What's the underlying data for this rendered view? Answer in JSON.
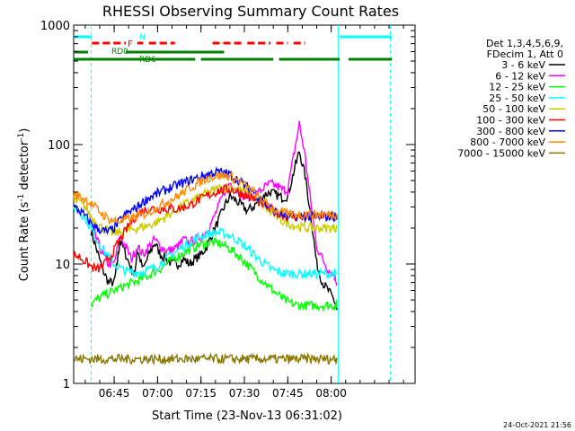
{
  "chart_data": {
    "type": "line",
    "title": "RHESSI Observing Summary Count Rates",
    "xlabel": "Start Time (23-Nov-13 06:31:02)",
    "ylabel_main": "Count Rate (s",
    "ylabel_sup1": "-1",
    "ylabel_mid": " detector",
    "ylabel_sup2": "-1",
    "ylabel_end": ")",
    "yscale": "log",
    "ylim": [
      1,
      1000
    ],
    "xlim_min": [
      0,
      118
    ],
    "x_ticks": [
      {
        "label": "06:45",
        "t": 14
      },
      {
        "label": "07:00",
        "t": 29
      },
      {
        "label": "07:15",
        "t": 44
      },
      {
        "label": "07:30",
        "t": 59
      },
      {
        "label": "07:45",
        "t": 74
      },
      {
        "label": "08:00",
        "t": 89
      }
    ],
    "y_ticks": [
      {
        "label": "1",
        "v": 1
      },
      {
        "label": "10",
        "v": 10
      },
      {
        "label": "100",
        "v": 100
      },
      {
        "label": "1000",
        "v": 1000
      }
    ],
    "vlines_min": [
      6,
      109.5
    ],
    "vlines_cyan_min": [
      91.5
    ],
    "legend_header": [
      "Det 1,3,4,5,6,9,",
      "FDecim 1, Att 0"
    ],
    "flag_labels": {
      "n": "N",
      "f": "F",
      "rd0": "RD0",
      "rd6": "RD6"
    },
    "flags": {
      "night": [
        [
          0,
          6.3
        ],
        [
          92,
          110
        ]
      ],
      "flare": [
        [
          6.3,
          18
        ],
        [
          22,
          24
        ],
        [
          26,
          35
        ],
        [
          48,
          58
        ],
        [
          60,
          68
        ],
        [
          70,
          74
        ],
        [
          76,
          80
        ]
      ],
      "decim0": [
        [
          0,
          5
        ],
        [
          18,
          52
        ]
      ],
      "decim6": [
        [
          0,
          42
        ],
        [
          44,
          69
        ],
        [
          71,
          92
        ],
        [
          95,
          110
        ]
      ]
    },
    "series": [
      {
        "name": "3 - 6 keV",
        "color": "#000000",
        "x": [
          6,
          8,
          10,
          12,
          14,
          15,
          16,
          18,
          20,
          21,
          22,
          24,
          26,
          28,
          30,
          32,
          34,
          36,
          38,
          40,
          42,
          44,
          46,
          48,
          50,
          52,
          54,
          56,
          58,
          60,
          62,
          64,
          66,
          68,
          70,
          72,
          74,
          76,
          78,
          80,
          82,
          84,
          86,
          88,
          90,
          91
        ],
        "y": [
          19,
          13,
          9,
          7,
          7,
          10,
          16,
          12,
          9,
          8,
          13,
          9,
          12,
          15,
          12,
          11,
          10,
          10,
          11,
          10,
          11,
          12,
          14,
          18,
          23,
          30,
          37,
          34,
          31,
          28,
          30,
          34,
          38,
          40,
          38,
          36,
          37,
          58,
          88,
          55,
          25,
          10,
          7,
          6,
          5,
          4
        ]
      },
      {
        "name": "6 - 12 keV",
        "color": "#ff00ff",
        "x": [
          6,
          8,
          10,
          12,
          14,
          16,
          18,
          20,
          22,
          24,
          26,
          28,
          30,
          32,
          34,
          36,
          38,
          40,
          42,
          44,
          46,
          48,
          50,
          52,
          54,
          56,
          58,
          60,
          62,
          64,
          66,
          68,
          70,
          72,
          74,
          76,
          78,
          80,
          82,
          84,
          86,
          88,
          90,
          91
        ],
        "y": [
          22,
          16,
          12,
          10,
          10,
          17,
          14,
          11,
          14,
          12,
          14,
          16,
          14,
          13,
          13,
          14,
          16,
          15,
          16,
          17,
          19,
          23,
          30,
          40,
          48,
          43,
          38,
          36,
          37,
          40,
          44,
          47,
          45,
          42,
          42,
          80,
          150,
          80,
          32,
          14,
          11,
          9,
          8,
          7
        ]
      },
      {
        "name": "12 - 25 keV",
        "color": "#00ff00",
        "x": [
          6,
          8,
          10,
          12,
          14,
          16,
          18,
          20,
          22,
          24,
          26,
          28,
          30,
          32,
          34,
          36,
          38,
          40,
          42,
          44,
          46,
          48,
          50,
          52,
          54,
          56,
          58,
          60,
          62,
          64,
          66,
          68,
          70,
          72,
          74,
          76,
          78,
          80,
          82,
          84,
          86,
          88,
          90,
          91
        ],
        "y": [
          4.6,
          5,
          5.4,
          5.7,
          6,
          6.3,
          6.6,
          6.9,
          7.2,
          7.6,
          8,
          8.6,
          9.2,
          10,
          10.8,
          11.6,
          12.4,
          13.2,
          14,
          14.6,
          15,
          15.1,
          14.9,
          14.3,
          13.4,
          12.3,
          11.1,
          9.9,
          8.8,
          7.8,
          7,
          6.3,
          5.7,
          5.2,
          4.8,
          4.6,
          4.5,
          4.5,
          4.5,
          4.5,
          4.5,
          4.5,
          4.5,
          4.5
        ]
      },
      {
        "name": "25 - 50 keV",
        "color": "#00ffff",
        "x": [
          0,
          2,
          4,
          6,
          8,
          10,
          12,
          14,
          16,
          18,
          20,
          22,
          24,
          26,
          28,
          30,
          32,
          34,
          36,
          38,
          40,
          42,
          44,
          46,
          48,
          50,
          52,
          54,
          56,
          58,
          60,
          62,
          64,
          66,
          68,
          70,
          72,
          74,
          76,
          78,
          80,
          82,
          84,
          86,
          88,
          90,
          91,
          92,
          94,
          96,
          98,
          100,
          102,
          104,
          106,
          108,
          110
        ],
        "y": [
          30,
          28,
          24,
          20,
          16,
          13.5,
          11.5,
          10,
          9.2,
          8.8,
          8.5,
          8.5,
          8.6,
          8.9,
          9.4,
          10.1,
          11,
          12,
          13,
          14.1,
          15.2,
          16.2,
          17.1,
          17.8,
          18.2,
          18.3,
          18,
          17.3,
          16.2,
          14.9,
          13.5,
          12.2,
          11,
          10,
          9.2,
          8.7,
          8.4,
          8.3,
          8.3,
          8.3,
          8.3,
          8.3,
          8.3,
          8.3,
          8.3,
          8.3,
          8.3,
          null,
          null,
          null,
          null,
          null,
          null,
          null,
          null,
          null,
          null
        ]
      },
      {
        "name": "50 - 100 keV",
        "color": "#cccc00",
        "x": [
          0,
          2,
          4,
          6,
          8,
          10,
          12,
          14,
          16,
          18,
          20,
          22,
          24,
          26,
          28,
          30,
          32,
          34,
          36,
          38,
          40,
          42,
          44,
          46,
          48,
          50,
          52,
          54,
          56,
          58,
          60,
          62,
          64,
          66,
          68,
          70,
          72,
          74,
          76,
          78,
          80,
          82,
          84,
          86,
          88,
          90,
          91
        ],
        "y": [
          34,
          33,
          30,
          25,
          22,
          20,
          19,
          18,
          18.5,
          19,
          19.5,
          20,
          20.5,
          21,
          22,
          23.5,
          25,
          27,
          29,
          31,
          33,
          35,
          37,
          39,
          41,
          43,
          44,
          44,
          43,
          41,
          39,
          36,
          33,
          30,
          27,
          25,
          23,
          22,
          21,
          20.5,
          20,
          20,
          20,
          20,
          20,
          20,
          20
        ]
      },
      {
        "name": "100 - 300 keV",
        "color": "#ff0000",
        "x": [
          0,
          2,
          4,
          6,
          8,
          10,
          12,
          14,
          16,
          18,
          20,
          22,
          24,
          26,
          28,
          30,
          32,
          34,
          36,
          38,
          40,
          42,
          44,
          46,
          48,
          50,
          52,
          54,
          56,
          58,
          60,
          62,
          64,
          66,
          68,
          70,
          72,
          74,
          76,
          78,
          80,
          82,
          84,
          86,
          88,
          90,
          91
        ],
        "y": [
          12,
          11.5,
          10.5,
          9.5,
          9,
          9.5,
          11,
          13,
          16,
          19,
          23,
          26,
          28,
          29,
          29,
          29,
          29,
          29,
          29,
          30,
          31,
          33,
          35,
          37,
          39,
          41,
          42,
          42,
          41,
          39,
          37,
          35,
          33,
          31,
          29,
          27,
          26,
          25,
          25,
          25,
          25,
          25,
          25,
          25,
          25,
          25,
          25
        ]
      },
      {
        "name": "300 - 800 keV",
        "color": "#0000ff",
        "x": [
          0,
          2,
          4,
          6,
          8,
          10,
          12,
          14,
          16,
          18,
          20,
          22,
          24,
          26,
          28,
          30,
          32,
          34,
          36,
          38,
          40,
          42,
          44,
          46,
          48,
          50,
          52,
          54,
          56,
          58,
          60,
          62,
          64,
          66,
          68,
          70,
          72,
          74,
          76,
          78,
          80,
          82,
          84,
          86,
          88,
          90,
          91
        ],
        "y": [
          30,
          28,
          25,
          22,
          20,
          19,
          18.5,
          20,
          23,
          26,
          28,
          30,
          33,
          36,
          38,
          40,
          42,
          44,
          46,
          48,
          50,
          52,
          54,
          56,
          58,
          59,
          58,
          56,
          52,
          48,
          44,
          40,
          36,
          32,
          29,
          27,
          26,
          25,
          25,
          25,
          25,
          25,
          25,
          25,
          25,
          25,
          25
        ]
      },
      {
        "name": "800 - 7000 keV",
        "color": "#ff8800",
        "x": [
          0,
          2,
          4,
          6,
          8,
          10,
          12,
          14,
          16,
          18,
          20,
          22,
          24,
          26,
          28,
          30,
          32,
          34,
          36,
          38,
          40,
          42,
          44,
          46,
          48,
          50,
          52,
          54,
          56,
          58,
          60,
          62,
          64,
          66,
          68,
          70,
          72,
          74,
          76,
          78,
          80,
          82,
          84,
          86,
          88,
          90,
          91
        ],
        "y": [
          38,
          37,
          35,
          32,
          29,
          26,
          24,
          23,
          23,
          23.5,
          24,
          25,
          26,
          27,
          29,
          31,
          33,
          35,
          37,
          40,
          43,
          46,
          49,
          52,
          54,
          55,
          55,
          54,
          51,
          48,
          44,
          40,
          36,
          33,
          30,
          28,
          27,
          26,
          26,
          26,
          26,
          26,
          26,
          26,
          26,
          26,
          26
        ]
      },
      {
        "name": "7000 - 15000 keV",
        "color": "#887700",
        "x": [
          0,
          2,
          4,
          6,
          8,
          10,
          12,
          14,
          16,
          18,
          20,
          22,
          24,
          26,
          28,
          30,
          32,
          34,
          36,
          38,
          40,
          42,
          44,
          46,
          48,
          50,
          52,
          54,
          56,
          58,
          60,
          62,
          64,
          66,
          68,
          70,
          72,
          74,
          76,
          78,
          80,
          82,
          84,
          86,
          88,
          90,
          91
        ],
        "y": [
          1.6,
          1.6,
          1.6,
          1.6,
          1.6,
          1.6,
          1.6,
          1.6,
          1.6,
          1.6,
          1.6,
          1.6,
          1.6,
          1.6,
          1.6,
          1.6,
          1.6,
          1.6,
          1.6,
          1.6,
          1.6,
          1.6,
          1.6,
          1.6,
          1.6,
          1.6,
          1.6,
          1.6,
          1.6,
          1.6,
          1.6,
          1.6,
          1.6,
          1.6,
          1.6,
          1.6,
          1.6,
          1.6,
          1.6,
          1.6,
          1.6,
          1.6,
          1.6,
          1.6,
          1.6,
          1.6,
          1.6
        ]
      }
    ],
    "timestamp": "24-Oct-2021 21:56"
  }
}
